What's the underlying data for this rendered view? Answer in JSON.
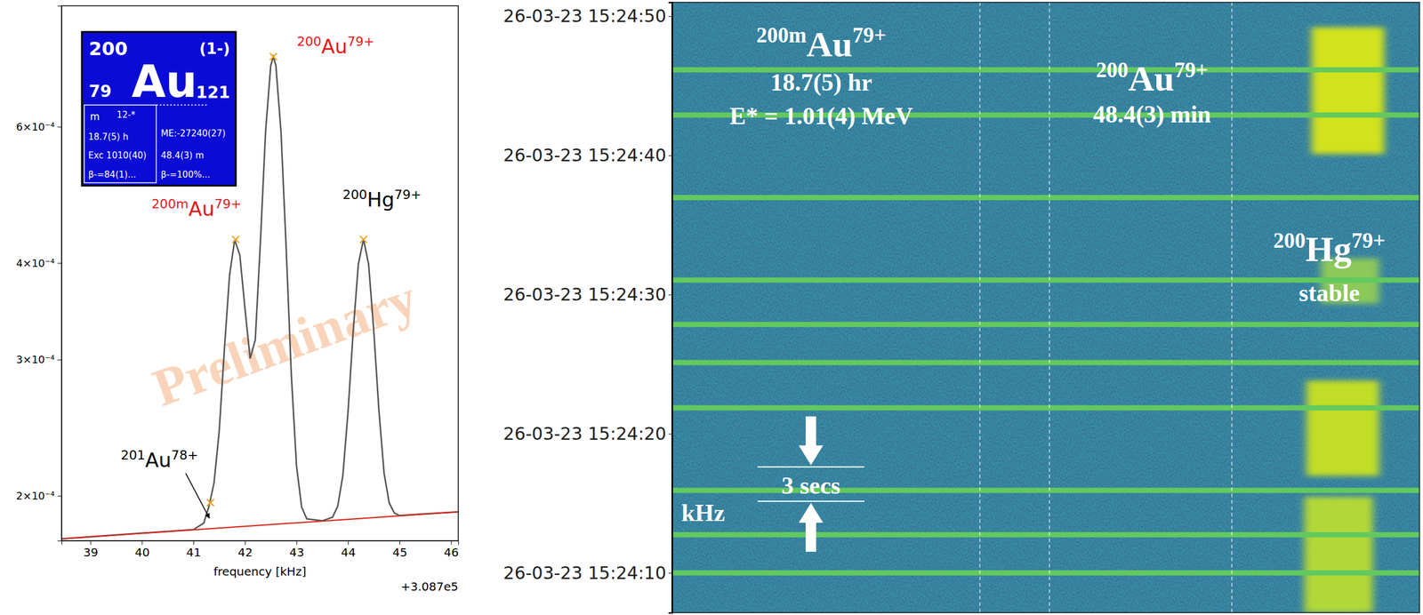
{
  "chart_data": [
    {
      "type": "line",
      "log": "y",
      "x_label": "frequency [kHz]",
      "x_offset_label": "+3.087e5",
      "watermark": "Preliminary",
      "xlim": [
        38.44,
        46.14
      ],
      "xticks": [
        39,
        40,
        41,
        42,
        43,
        44,
        45,
        46
      ],
      "ylim": [
        0.000175,
        0.00086
      ],
      "yticks": [
        {
          "value": 0.0002,
          "label": "2×10⁻⁴"
        },
        {
          "value": 0.0003,
          "label": "3×10⁻⁴"
        },
        {
          "value": 0.0004,
          "label": "4×10⁻⁴"
        },
        {
          "value": 0.0006,
          "label": "6×10⁻⁴"
        }
      ],
      "series": [
        {
          "color": "#555555",
          "x": [
            38.44,
            39.0,
            40.0,
            41.0,
            41.2,
            41.3,
            41.4,
            41.5,
            41.6,
            41.7,
            41.8,
            41.9,
            42.0,
            42.1,
            42.2,
            42.3,
            42.4,
            42.5,
            42.55,
            42.6,
            42.7,
            42.8,
            42.9,
            43.0,
            43.1,
            43.2,
            43.5,
            43.7,
            43.8,
            43.9,
            44.0,
            44.1,
            44.2,
            44.3,
            44.4,
            44.5,
            44.6,
            44.7,
            44.8,
            44.9,
            45.0,
            45.5,
            46.14
          ],
          "values": [
            0.000176,
            0.0001771,
            0.000179,
            0.0001809,
            0.0001844,
            0.0001938,
            0.000208,
            0.0002426,
            0.0003091,
            0.0003853,
            0.0004285,
            0.0004097,
            0.0003493,
            0.000301,
            0.0003182,
            0.0004264,
            0.0005916,
            0.0007198,
            0.0007389,
            0.00072,
            0.0005902,
            0.0004174,
            0.0002866,
            0.0002188,
            0.0001934,
            0.0001868,
            0.0001857,
            0.0001877,
            0.0001939,
            0.0002125,
            0.0002567,
            0.0003259,
            0.0003981,
            0.0004293,
            0.0003985,
            0.0003267,
            0.0002578,
            0.000214,
            0.0001958,
            0.00019,
            0.0001886,
            0.0001896,
            0.0001907
          ]
        },
        {
          "color": "#d62d20",
          "x": [
            38.44,
            46.14
          ],
          "values": [
            0.000176,
            0.0001907
          ]
        },
        {
          "type": "scatter",
          "marker": "x",
          "color": "#f0a020",
          "x": [
            41.33,
            41.82,
            42.55,
            44.3
          ],
          "values": [
            0.000196,
            0.000429,
            0.000739,
            0.000429
          ]
        }
      ],
      "annotations": [
        {
          "mass": "200",
          "symbol": "Au",
          "charge": "79+",
          "color": "#e8161b",
          "x": 43.76,
          "y": 0.000747
        },
        {
          "mass": "200m",
          "symbol": "Au",
          "charge": "79+",
          "color": "#e8161b",
          "x": 41.06,
          "y": 0.00046
        },
        {
          "mass": "200",
          "symbol": "Hg",
          "charge": "79+",
          "color": "#000000",
          "x": 44.66,
          "y": 0.000473
        },
        {
          "mass": "201",
          "symbol": "Au",
          "charge": "78+",
          "color": "#000000",
          "x": 40.34,
          "y": 0.000218,
          "arrow_to": [
            41.33,
            0.000186
          ]
        }
      ],
      "nuclide_box": {
        "mass": "200",
        "spin": "(1-)",
        "symbol": "Au",
        "z": "79",
        "n": "121",
        "isomer": "m",
        "isomer_spin": "12-*",
        "isomer_half_life": "18.7(5) h",
        "isomer_excitation": "Exc 1010(40)",
        "isomer_decay": "β-=84(1)...",
        "mass_excess": "ME:-27240(27)",
        "half_life": "48.4(3) m",
        "decay": "β-=100%..."
      }
    },
    {
      "type": "spectrogram",
      "tick_labels": "y",
      "xlim": [
        38.92,
        46.13
      ],
      "ylim": [
        7.14,
        51.0
      ],
      "yticks": [
        {
          "value": 10,
          "label": "26-03-23 15:24:10"
        },
        {
          "value": 20,
          "label": "26-03-23 15:24:20"
        },
        {
          "value": 30,
          "label": "26-03-23 15:24:30"
        },
        {
          "value": 40,
          "label": "26-03-23 15:24:40"
        },
        {
          "value": 50,
          "label": "26-03-23 15:24:50"
        }
      ],
      "series": [
        {
          "type": "band",
          "colors": [
            "#d2e21b",
            "#8cc85a",
            "#c2dd28",
            "#b2d838"
          ],
          "t_start": [
            40.1,
            29.35,
            16.97,
            7.14
          ],
          "t_end": [
            49.21,
            32.6,
            23.81,
            15.47
          ],
          "f_start": [
            45.09,
            45.18,
            45.04,
            45.02
          ],
          "f_end": [
            45.79,
            45.74,
            45.74,
            45.68
          ]
        },
        {
          "type": "hline",
          "color": "#62c95e",
          "values": [
            46.15,
            42.9,
            36.97,
            31.04,
            27.85,
            25.11,
            21.86,
            15.93,
            12.74,
            10.0
          ]
        },
        {
          "type": "vline",
          "color": "#ffffff",
          "line_style": "dashed",
          "x": [
            41.89,
            42.56,
            44.32
          ]
        }
      ],
      "annotations": [
        {
          "mass": "200m",
          "symbol": "Au",
          "charge": "79+",
          "x": 40.36,
          "y": 47.13
        },
        {
          "text": "18.7(5) hr",
          "x": 40.36,
          "y": 44.65
        },
        {
          "text": "E* = 1.01(4) MeV",
          "x": 40.36,
          "y": 42.24
        },
        {
          "mass": "200",
          "symbol": "Au",
          "charge": "79+",
          "x": 43.55,
          "y": 44.65
        },
        {
          "text": "48.4(3) min",
          "x": 43.55,
          "y": 42.37
        },
        {
          "mass": "200",
          "symbol": "Hg",
          "charge": "79+",
          "x": 45.26,
          "y": 32.4
        },
        {
          "text": "stable",
          "x": 45.26,
          "y": 29.54
        },
        {
          "text": "3 secs",
          "x": 40.26,
          "y": 15.67,
          "bracket": [
            15.15,
            17.62
          ]
        },
        {
          "text": "kHz",
          "x": 39.22,
          "y": 13.72
        }
      ]
    }
  ]
}
